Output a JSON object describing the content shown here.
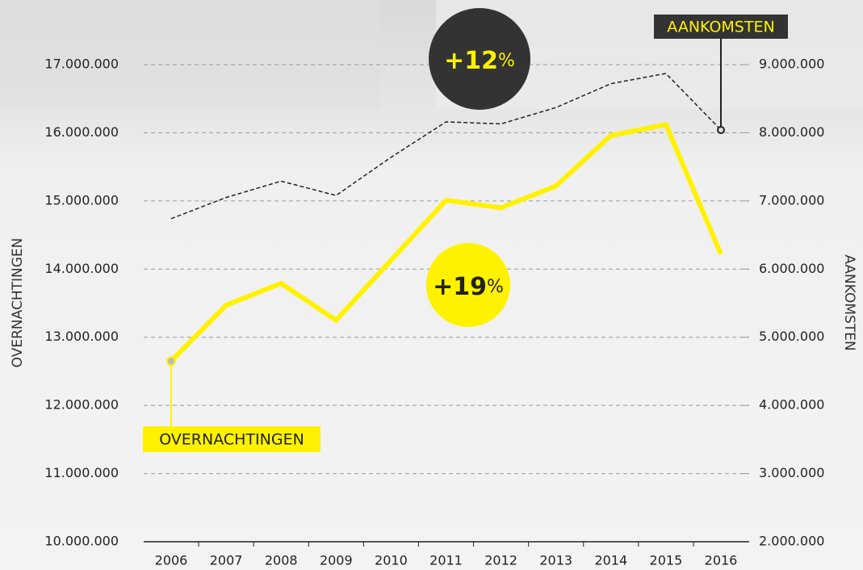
{
  "chart_data": {
    "type": "line",
    "categories": [
      "2006",
      "2007",
      "2008",
      "2009",
      "2010",
      "2011",
      "2012",
      "2013",
      "2014",
      "2015",
      "2016"
    ],
    "y_label": "OVERNACHTINGEN",
    "y2_label": "AANKOMSTEN",
    "series": [
      {
        "name": "OVERNACHTINGEN",
        "color": "#fff200",
        "axis": "y",
        "values": [
          12650000,
          13470000,
          13790000,
          13250000,
          14130000,
          15010000,
          14900000,
          15220000,
          15960000,
          16120000,
          14220000
        ]
      },
      {
        "name": "AANKOMSTEN",
        "color": "#222222",
        "axis": "y2",
        "values": [
          6740000,
          7050000,
          7290000,
          7080000,
          7640000,
          8160000,
          8130000,
          8370000,
          8720000,
          8870000,
          8040000
        ]
      }
    ],
    "ylim": [
      10000000,
      17000000
    ],
    "yticks": [
      {
        "value": 10000000,
        "label": "10.000.000"
      },
      {
        "value": 11000000,
        "label": "11.000.000"
      },
      {
        "value": 12000000,
        "label": "12.000.000"
      },
      {
        "value": 13000000,
        "label": "13.000.000"
      },
      {
        "value": 14000000,
        "label": "14.000.000"
      },
      {
        "value": 15000000,
        "label": "15.000.000"
      },
      {
        "value": 16000000,
        "label": "16.000.000"
      },
      {
        "value": 17000000,
        "label": "17.000.000"
      }
    ],
    "y2lim": [
      2000000,
      9000000
    ],
    "y2ticks": [
      {
        "value": 2000000,
        "label": "2.000.000"
      },
      {
        "value": 3000000,
        "label": "3.000.000"
      },
      {
        "value": 4000000,
        "label": "4.000.000"
      },
      {
        "value": 5000000,
        "label": "5.000.000"
      },
      {
        "value": 6000000,
        "label": "6.000.000"
      },
      {
        "value": 7000000,
        "label": "7.000.000"
      },
      {
        "value": 8000000,
        "label": "8.000.000"
      },
      {
        "value": 9000000,
        "label": "9.000.000"
      }
    ],
    "grid": true,
    "annotations": [
      {
        "number": "+12",
        "unit": "%"
      },
      {
        "number": "+19",
        "unit": "%"
      }
    ]
  }
}
